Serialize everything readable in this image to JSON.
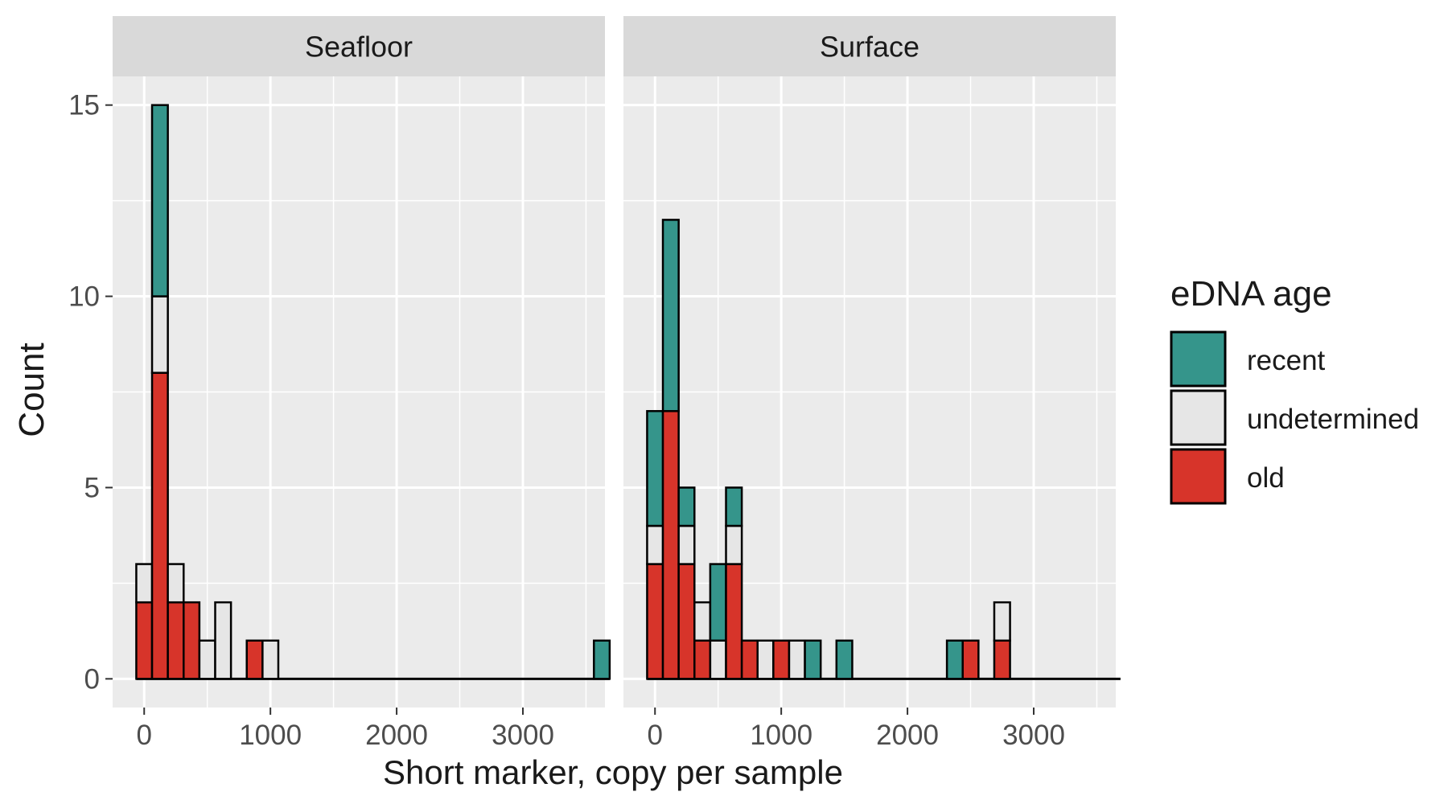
{
  "chart_data": {
    "type": "bar",
    "subtype": "stacked-histogram",
    "xlabel": "Short marker, copy per sample",
    "ylabel": "Count",
    "x_ticks": [
      0,
      1000,
      2000,
      3000
    ],
    "y_ticks": [
      0,
      5,
      10,
      15
    ],
    "xlim": [
      -250,
      3650
    ],
    "ylim": [
      -0.75,
      15.75
    ],
    "bin_width": 125,
    "grid": true,
    "legend": {
      "title": "eDNA age",
      "placement": "right",
      "entries": [
        {
          "key": "recent",
          "label": "recent",
          "color": "#35958B"
        },
        {
          "key": "undetermined",
          "label": "undetermined",
          "color": "#E6E6E6"
        },
        {
          "key": "old",
          "label": "old",
          "color": "#D7342A"
        }
      ]
    },
    "colors": {
      "panel_bg": "#EBEBEB",
      "strip_bg": "#D9D9D9",
      "grid": "#FFFFFF",
      "bar_outline": "#000000"
    },
    "panels": [
      {
        "title": "Seafloor",
        "bins": [
          {
            "center": 0,
            "old": 2,
            "undetermined": 1,
            "recent": 0
          },
          {
            "center": 125,
            "old": 8,
            "undetermined": 2,
            "recent": 5
          },
          {
            "center": 250,
            "old": 2,
            "undetermined": 1,
            "recent": 0
          },
          {
            "center": 375,
            "old": 2,
            "undetermined": 0,
            "recent": 0
          },
          {
            "center": 500,
            "old": 0,
            "undetermined": 1,
            "recent": 0
          },
          {
            "center": 625,
            "old": 0,
            "undetermined": 2,
            "recent": 0
          },
          {
            "center": 875,
            "old": 1,
            "undetermined": 0,
            "recent": 0
          },
          {
            "center": 1000,
            "old": 0,
            "undetermined": 1,
            "recent": 0
          },
          {
            "center": 3625,
            "old": 0,
            "undetermined": 0,
            "recent": 1
          }
        ]
      },
      {
        "title": "Surface",
        "bins": [
          {
            "center": 0,
            "old": 3,
            "undetermined": 1,
            "recent": 3
          },
          {
            "center": 125,
            "old": 7,
            "undetermined": 0,
            "recent": 5
          },
          {
            "center": 250,
            "old": 3,
            "undetermined": 1,
            "recent": 1
          },
          {
            "center": 375,
            "old": 1,
            "undetermined": 1,
            "recent": 0
          },
          {
            "center": 500,
            "old": 0,
            "undetermined": 1,
            "recent": 2
          },
          {
            "center": 625,
            "old": 3,
            "undetermined": 1,
            "recent": 1
          },
          {
            "center": 750,
            "old": 1,
            "undetermined": 0,
            "recent": 0
          },
          {
            "center": 875,
            "old": 0,
            "undetermined": 1,
            "recent": 0
          },
          {
            "center": 1000,
            "old": 1,
            "undetermined": 0,
            "recent": 0
          },
          {
            "center": 1125,
            "old": 0,
            "undetermined": 1,
            "recent": 0
          },
          {
            "center": 1250,
            "old": 0,
            "undetermined": 0,
            "recent": 1
          },
          {
            "center": 1500,
            "old": 0,
            "undetermined": 0,
            "recent": 1
          },
          {
            "center": 2375,
            "old": 0,
            "undetermined": 0,
            "recent": 1
          },
          {
            "center": 2500,
            "old": 1,
            "undetermined": 0,
            "recent": 0
          },
          {
            "center": 2750,
            "old": 1,
            "undetermined": 1,
            "recent": 0
          }
        ]
      }
    ]
  }
}
